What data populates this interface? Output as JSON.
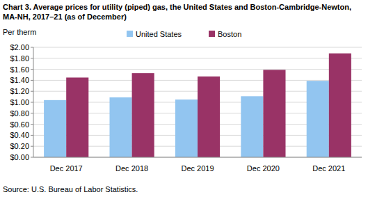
{
  "chart_data": {
    "type": "bar",
    "title": "Chart 3. Average prices for utility (piped) gas, the United States and Boston-Cambridge-Newton, MA-NH, 2017–21 (as of December)",
    "y_label": "Per therm",
    "source": "Source: U.S. Bureau of Labor Statistics.",
    "categories": [
      "Dec 2017",
      "Dec 2018",
      "Dec 2019",
      "Dec 2020",
      "Dec 2021"
    ],
    "series": [
      {
        "name": "United States",
        "color": "#92c5f0",
        "values": [
          1.04,
          1.09,
          1.05,
          1.11,
          1.39
        ]
      },
      {
        "name": "Boston",
        "color": "#993366",
        "values": [
          1.45,
          1.53,
          1.47,
          1.59,
          1.89
        ]
      }
    ],
    "ylim": [
      0,
      2
    ],
    "yticks": [
      {
        "value": 0,
        "label": "$0.00"
      },
      {
        "value": 0.2,
        "label": "$0.20"
      },
      {
        "value": 0.4,
        "label": "$0.40"
      },
      {
        "value": 0.6,
        "label": "$0.60"
      },
      {
        "value": 0.8,
        "label": "$0.80"
      },
      {
        "value": 1,
        "label": "$1.00"
      },
      {
        "value": 1.2,
        "label": "$1.20"
      },
      {
        "value": 1.4,
        "label": "$1.40"
      },
      {
        "value": 1.6,
        "label": "$1.60"
      },
      {
        "value": 1.8,
        "label": "$1.80"
      },
      {
        "value": 2,
        "label": "$2.00"
      }
    ],
    "grid": true,
    "legend": "top"
  }
}
